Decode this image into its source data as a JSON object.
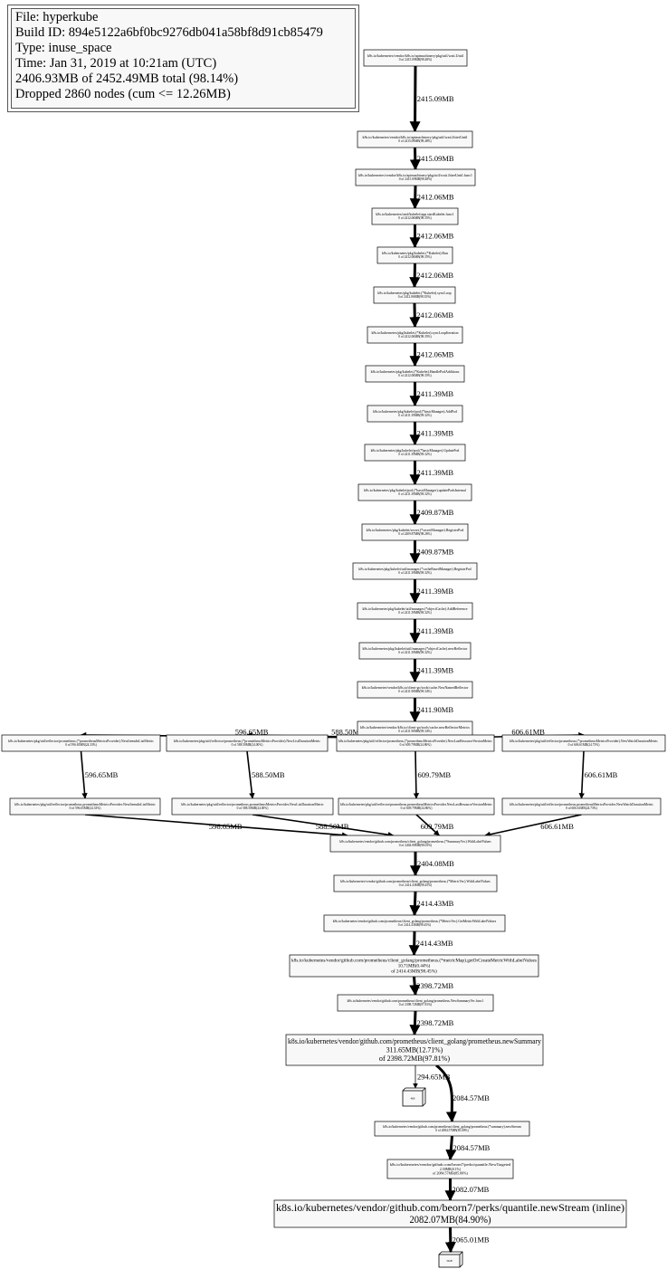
{
  "legend": {
    "file": "File: hyperkube",
    "build_id": "Build ID: 894e5122a6bf0bc9276db041a58bf8d91cb85479",
    "type": "Type: inuse_space",
    "time": "Time: Jan 31, 2019 at 10:21am (UTC)",
    "total": "2406.93MB of 2452.49MB total (98.14%)",
    "dropped": "Dropped 2860 nodes (cum <= 12.26MB)"
  },
  "nodes": [
    {
      "lines": [
        "k8s.io/kubernetes/vendor/k8s.io/apimachinery/pkg/util/wait.Until",
        "0 of 2415.09MB(98.48%)"
      ]
    },
    {
      "lines": [
        "k8s.io/kubernetes/vendor/k8s.io/apimachinery/pkg/util/wait.JitterUntil",
        "0 of 2415.09MB(98.48%)"
      ]
    },
    {
      "lines": [
        "k8s.io/kubernetes/vendor/k8s.io/apimachinery/pkg/util/wait.JitterUntil.func1",
        "0 of 2415.09MB(98.48%)"
      ]
    },
    {
      "lines": [
        "k8s.io/kubernetes/cmd/kubelet/app.startKubelet.func1",
        "0 of 2412.06MB(98.35%)"
      ]
    },
    {
      "lines": [
        "k8s.io/kubernetes/pkg/kubelet.(*Kubelet).Run",
        "0 of 2412.06MB(98.35%)"
      ]
    },
    {
      "lines": [
        "k8s.io/kubernetes/pkg/kubelet.(*Kubelet).syncLoop",
        "0 of 2412.06MB(98.35%)"
      ]
    },
    {
      "lines": [
        "k8s.io/kubernetes/pkg/kubelet.(*Kubelet).syncLoopIteration",
        "0 of 2412.06MB(98.35%)"
      ]
    },
    {
      "lines": [
        "k8s.io/kubernetes/pkg/kubelet.(*Kubelet).HandlePodAdditions",
        "0 of 2412.06MB(98.35%)"
      ]
    },
    {
      "lines": [
        "k8s.io/kubernetes/pkg/kubelet/pod.(*basicManager).AddPod",
        "0 of 2411.39MB(98.32%)"
      ]
    },
    {
      "lines": [
        "k8s.io/kubernetes/pkg/kubelet/pod.(*basicManager).UpdatePod",
        "0 of 2411.39MB(98.32%)"
      ]
    },
    {
      "lines": [
        "k8s.io/kubernetes/pkg/kubelet/pod.(*basicManager).updatePodsInternal",
        "0 of 2411.39MB(98.32%)"
      ]
    },
    {
      "lines": [
        "k8s.io/kubernetes/pkg/kubelet/secret.(*secretManager).RegisterPod",
        "0 of 2409.87MB(98.26%)"
      ]
    },
    {
      "lines": [
        "k8s.io/kubernetes/pkg/kubelet/util/manager.(*cacheBasedManager).RegisterPod",
        "0 of 2411.39MB(98.32%)"
      ]
    },
    {
      "lines": [
        "k8s.io/kubernetes/pkg/kubelet/util/manager.(*objectCache).AddReference",
        "0 of 2411.39MB(98.32%)"
      ]
    },
    {
      "lines": [
        "k8s.io/kubernetes/pkg/kubelet/util/manager.(*objectCache).newReflector",
        "0 of 2411.39MB(98.32%)"
      ]
    },
    {
      "lines": [
        "k8s.io/kubernetes/vendor/k8s.io/client-go/tools/cache.NewNamedReflector",
        "0 of 2411.90MB(98.34%)"
      ]
    },
    {
      "lines": [
        "k8s.io/kubernetes/vendor/k8s.io/client-go/tools/cache.newReflectorMetrics",
        "0 of 2411.90MB(98.34%)"
      ]
    },
    {
      "lines": [
        "k8s.io/kubernetes/pkg/util/reflector/prometheus.(*prometheusMetricsProvider).NewItemsInListMetric",
        "0 of 596.65MB(24.33%)"
      ]
    },
    {
      "lines": [
        "k8s.io/kubernetes/pkg/util/reflector/prometheus.(*prometheusMetricsProvider).NewListDurationMetric",
        "0 of 588.50MB(24.00%)"
      ]
    },
    {
      "lines": [
        "k8s.io/kubernetes/pkg/util/reflector/prometheus.(*prometheusMetricsProvider).NewLastResourceVersionMetric",
        "0 of 609.79MB(24.86%)"
      ]
    },
    {
      "lines": [
        "k8s.io/kubernetes/pkg/util/reflector/prometheus.(*prometheusMetricsProvider).NewWatchDurationMetric",
        "0 of 606.61MB(24.73%)"
      ]
    },
    {
      "lines": [
        "k8s.io/kubernetes/pkg/util/reflector/prometheus.prometheusMetricsProvider.NewItemsInListMetric",
        "0 of 596.65MB(24.33%)"
      ]
    },
    {
      "lines": [
        "k8s.io/kubernetes/pkg/util/reflector/prometheus.prometheusMetricsProvider.NewListDurationMetric",
        "0 of 588.50MB(24.00%)"
      ]
    },
    {
      "lines": [
        "k8s.io/kubernetes/pkg/util/reflector/prometheus.prometheusMetricsProvider.NewLastResourceVersionMetric",
        "0 of 609.79MB(24.86%)"
      ]
    },
    {
      "lines": [
        "k8s.io/kubernetes/pkg/util/reflector/prometheus.prometheusMetricsProvider.NewWatchDurationMetric",
        "0 of 606.61MB(24.73%)"
      ]
    },
    {
      "lines": [
        "k8s.io/kubernetes/vendor/github.com/prometheus/client_golang/prometheus.(*SummaryVec).WithLabelValues",
        "0 of 2404.08MB(98.03%)"
      ]
    },
    {
      "lines": [
        "k8s.io/kubernetes/vendor/github.com/prometheus/client_golang/prometheus.(*MetricVec).WithLabelValues",
        "0 of 2414.43MB(98.45%)"
      ]
    },
    {
      "lines": [
        "k8s.io/kubernetes/vendor/github.com/prometheus/client_golang/prometheus.(*MetricVec).GetMetricWithLabelValues",
        "0 of 2414.43MB(98.45%)"
      ]
    },
    {
      "lines": [
        "k8s.io/kubernetes/vendor/github.com/prometheus/client_golang/prometheus.(*metricMap).getOrCreateMetricWithLabelValues",
        "10.71MB(0.44%)",
        "of 2414.43MB(98.45%)"
      ]
    },
    {
      "lines": [
        "k8s.io/kubernetes/vendor/github.com/prometheus/client_golang/prometheus.NewSummaryVec.func1",
        "0 of 2398.72MB(97.81%)"
      ]
    },
    {
      "lines": [
        "k8s.io/kubernetes/vendor/github.com/prometheus/client_golang/prometheus.newSummary",
        "311.65MB(12.71%)",
        "of 2398.72MB(97.81%)"
      ]
    },
    {
      "lines": [
        "4kB"
      ]
    },
    {
      "lines": [
        "k8s.io/kubernetes/vendor/github.com/prometheus/client_golang/prometheus.(*summary).newStream",
        "0 of 2084.57MB(85.00%)"
      ]
    },
    {
      "lines": [
        "k8s.io/kubernetes/vendor/github.com/beorn7/perks/quantile.NewTargeted",
        "2.50MB(0.1%)",
        "of 2084.57MB(85.00%)"
      ]
    },
    {
      "lines": [
        "k8s.io/kubernetes/vendor/github.com/beorn7/perks/quantile.newStream (inline)",
        "2082.07MB(84.90%)"
      ]
    },
    {
      "lines": [
        "32kB"
      ]
    }
  ],
  "edges": [
    {
      "from": 0,
      "to": 1,
      "label": "2415.09MB"
    },
    {
      "from": 1,
      "to": 2,
      "label": "2415.09MB"
    },
    {
      "from": 2,
      "to": 3,
      "label": "2412.06MB"
    },
    {
      "from": 3,
      "to": 4,
      "label": "2412.06MB"
    },
    {
      "from": 4,
      "to": 5,
      "label": "2412.06MB"
    },
    {
      "from": 5,
      "to": 6,
      "label": "2412.06MB"
    },
    {
      "from": 6,
      "to": 7,
      "label": "2412.06MB"
    },
    {
      "from": 7,
      "to": 8,
      "label": "2411.39MB"
    },
    {
      "from": 8,
      "to": 9,
      "label": "2411.39MB"
    },
    {
      "from": 9,
      "to": 10,
      "label": "2411.39MB"
    },
    {
      "from": 10,
      "to": 11,
      "label": "2409.87MB"
    },
    {
      "from": 11,
      "to": 12,
      "label": "2409.87MB"
    },
    {
      "from": 12,
      "to": 13,
      "label": "2411.39MB"
    },
    {
      "from": 13,
      "to": 14,
      "label": "2411.39MB"
    },
    {
      "from": 14,
      "to": 15,
      "label": "2411.39MB"
    },
    {
      "from": 15,
      "to": 16,
      "label": "2411.90MB"
    },
    {
      "from": 16,
      "to": 17,
      "label": "596.65MB"
    },
    {
      "from": 16,
      "to": 18,
      "label": "588.50MB"
    },
    {
      "from": 16,
      "to": 19,
      "label": "609.79MB"
    },
    {
      "from": 16,
      "to": 20,
      "label": "606.61MB"
    },
    {
      "from": 17,
      "to": 21,
      "label": "596.65MB"
    },
    {
      "from": 18,
      "to": 22,
      "label": "588.50MB"
    },
    {
      "from": 19,
      "to": 23,
      "label": "609.79MB"
    },
    {
      "from": 20,
      "to": 24,
      "label": "606.61MB"
    },
    {
      "from": 21,
      "to": 25,
      "label": "596.65MB"
    },
    {
      "from": 22,
      "to": 25,
      "label": "588.50MB"
    },
    {
      "from": 23,
      "to": 25,
      "label": "609.79MB"
    },
    {
      "from": 24,
      "to": 25,
      "label": "606.61MB"
    },
    {
      "from": 25,
      "to": 26,
      "label": "2404.08MB"
    },
    {
      "from": 26,
      "to": 27,
      "label": "2414.43MB"
    },
    {
      "from": 27,
      "to": 28,
      "label": "2414.43MB"
    },
    {
      "from": 28,
      "to": 29,
      "label": "2398.72MB"
    },
    {
      "from": 29,
      "to": 30,
      "label": "2398.72MB"
    },
    {
      "from": 30,
      "to": 31,
      "label": "294.65MB"
    },
    {
      "from": 30,
      "to": 32,
      "label": "2084.57MB"
    },
    {
      "from": 32,
      "to": 33,
      "label": "2084.57MB"
    },
    {
      "from": 33,
      "to": 34,
      "label": "2082.07MB"
    },
    {
      "from": 34,
      "to": 35,
      "label": "2065.01MB"
    }
  ],
  "colors": {
    "node_fill": "#f8f8f8",
    "node_border": "#000000",
    "edge": "#000000"
  }
}
